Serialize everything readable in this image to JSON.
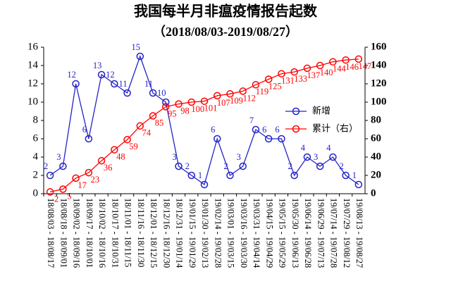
{
  "chart_data": {
    "type": "line",
    "title": "我国每半月非瘟疫情报告起数",
    "subtitle": "（2018/08/03-2019/08/27）",
    "categories": [
      "18/08/03 - 18/08/17",
      "18/08/18 - 18/09/01",
      "18/09/02 - 18/09/16",
      "18/09/17 - 18/10/01",
      "18/10/02 - 18/10/16",
      "18/10/17 - 18/10/31",
      "18/11/01 - 18/11/15",
      "18/11/16 - 18/11/30",
      "18/12/01 - 18/12/15",
      "18/12/16 - 18/12/30",
      "18/12/31 - 19/01/14",
      "19/01/15 - 19/01/29",
      "19/01/30 - 19/02/13",
      "19/02/14 - 19/02/28",
      "19/03/01 - 19/03/15",
      "19/03/16 - 19/03/30",
      "19/03/31 - 19/04/14",
      "19/04/15 - 19/04/29",
      "19/05/15 - 19/05/29",
      "19/05/30 - 19/06/13",
      "19/06/14 - 19/06/28",
      "19/06/29 - 19/07/13",
      "19/07/14 - 19/07/28",
      "19/07/29 - 19/08/12",
      "19/08/13 - 19/08/27"
    ],
    "series": [
      {
        "name": "新增",
        "color": "#2323c8",
        "axis": "y",
        "values": [
          2,
          3,
          12,
          6,
          13,
          12,
          11,
          15,
          11,
          10,
          3,
          2,
          1,
          6,
          2,
          3,
          7,
          6,
          6,
          2,
          4,
          3,
          4,
          2,
          1
        ]
      },
      {
        "name": "累计（右）",
        "color": "#ff0000",
        "axis": "y2",
        "values": [
          2,
          5,
          17,
          23,
          36,
          48,
          59,
          74,
          85,
          95,
          98,
          100,
          101,
          107,
          109,
          112,
          119,
          125,
          131,
          133,
          137,
          140,
          144,
          146,
          147
        ]
      }
    ],
    "ylim": [
      0,
      16
    ],
    "yticks": [
      0,
      2,
      4,
      6,
      8,
      10,
      12,
      14,
      16
    ],
    "y2lim": [
      0,
      160
    ],
    "y2ticks": [
      0,
      20,
      40,
      60,
      80,
      100,
      120,
      140,
      160
    ],
    "grid": false,
    "legend": "right"
  }
}
